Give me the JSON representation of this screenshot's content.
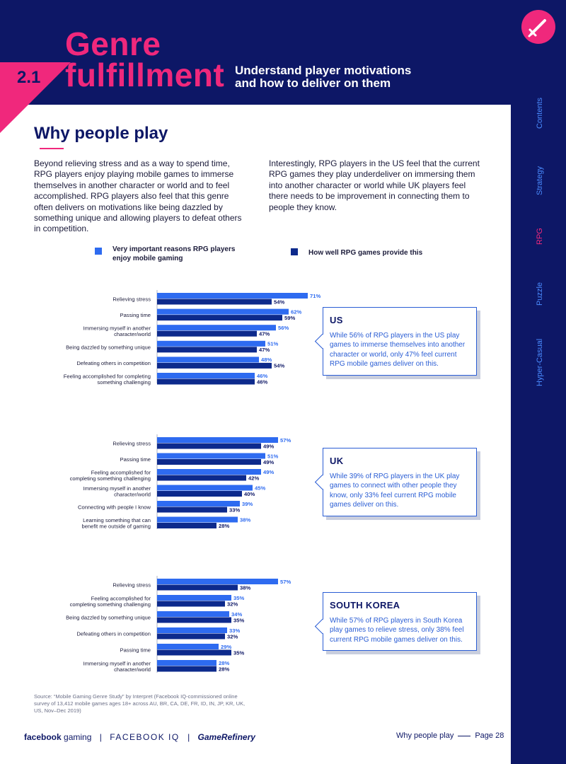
{
  "header": {
    "section_number": "2.1",
    "title_line1": "Genre",
    "title_line2": "fulfillment",
    "subtitle_line1": "Understand player motivations",
    "subtitle_line2": "and how to deliver on them"
  },
  "side_nav": {
    "items": [
      "Contents",
      "Strategy",
      "RPG",
      "Puzzle",
      "Hyper-Casual"
    ],
    "active": "RPG"
  },
  "section_title": "Why people play",
  "body": {
    "left": "Beyond relieving stress and as a way to spend time, RPG players enjoy playing mobile games to immerse themselves in another character or world and to feel accomplished. RPG players also feel that this genre often delivers on motivations like being dazzled by something unique and allowing players to defeat others in competition.",
    "right": "Interestingly, RPG players in the US feel that the current RPG games they play underdeliver on immersing them into another character or world while UK players feel there needs to be improvement in connecting them to people they know."
  },
  "legend": {
    "importance_line1": "Very important reasons RPG players",
    "importance_line2": "enjoy mobile gaming",
    "delivery": "How well RPG games provide this"
  },
  "colors": {
    "importance": "#2e6bf0",
    "delivery": "#0d2a8c",
    "accent": "#f0287c",
    "navy": "#0d1766"
  },
  "chart_data": [
    {
      "type": "bar",
      "region": "US",
      "categories": [
        [
          "Relieving stress"
        ],
        [
          "Passing time"
        ],
        [
          "Immersing myself in another",
          "character/world"
        ],
        [
          "Being dazzled by something unique"
        ],
        [
          "Defeating others in competition"
        ],
        [
          "Feeling accomplished for completing",
          "something challenging"
        ]
      ],
      "series": [
        {
          "name": "Very important reasons RPG players enjoy mobile gaming",
          "values": [
            71,
            62,
            56,
            51,
            48,
            46
          ]
        },
        {
          "name": "How well RPG games provide this",
          "values": [
            54,
            59,
            47,
            47,
            54,
            46
          ]
        }
      ],
      "unit": "%"
    },
    {
      "type": "bar",
      "region": "UK",
      "categories": [
        [
          "Relieving stress"
        ],
        [
          "Passing time"
        ],
        [
          "Feeling accomplished for",
          "completing something challenging"
        ],
        [
          "Immersing myself in another",
          "character/world"
        ],
        [
          "Connecting with people I know"
        ],
        [
          "Learning something that can",
          "benefit me outside of gaming"
        ]
      ],
      "series": [
        {
          "name": "Very important reasons RPG players enjoy mobile gaming",
          "values": [
            57,
            51,
            49,
            45,
            39,
            38
          ]
        },
        {
          "name": "How well RPG games provide this",
          "values": [
            49,
            49,
            42,
            40,
            33,
            28
          ]
        }
      ],
      "unit": "%"
    },
    {
      "type": "bar",
      "region": "South Korea",
      "categories": [
        [
          "Relieving stress"
        ],
        [
          "Feeling accomplished for",
          "completing something challenging"
        ],
        [
          "Being dazzled by something unique"
        ],
        [
          "Defeating others in competition"
        ],
        [
          "Passing time"
        ],
        [
          "Immersing myself in another",
          "character/world"
        ]
      ],
      "series": [
        {
          "name": "Very important reasons RPG players enjoy mobile gaming",
          "values": [
            57,
            35,
            34,
            33,
            29,
            28
          ]
        },
        {
          "name": "How well RPG games provide this",
          "values": [
            38,
            32,
            35,
            32,
            35,
            28
          ]
        }
      ],
      "unit": "%"
    }
  ],
  "callouts": [
    {
      "heading": "US",
      "text": "While 56% of RPG players in the US play games to immerse themselves into another character or world, only 47% feel current RPG mobile games deliver on this."
    },
    {
      "heading": "UK",
      "text": "While 39% of RPG players in the UK play games to connect with other people they know, only 33% feel current RPG mobile games deliver on this."
    },
    {
      "heading": "SOUTH KOREA",
      "text": "While 57% of RPG players in South Korea play games to relieve stress, only 38% feel current RPG mobile games deliver on this."
    }
  ],
  "source": "Source: “Mobile Gaming Genre Study” by Interpret (Facebook IQ-commissioned online survey of 13,412 mobile games ages 18+ across AU, BR, CA, DE, FR, ID, IN, JP, KR, UK, US, Nov–Dec 2019)",
  "footer": {
    "logo_facebook_bold": "facebook",
    "logo_facebook_light": "gaming",
    "logo_iq": "FACEBOOK IQ",
    "logo_refinery": "GameRefinery",
    "page_label": "Why people play",
    "page_number": "Page 28"
  }
}
